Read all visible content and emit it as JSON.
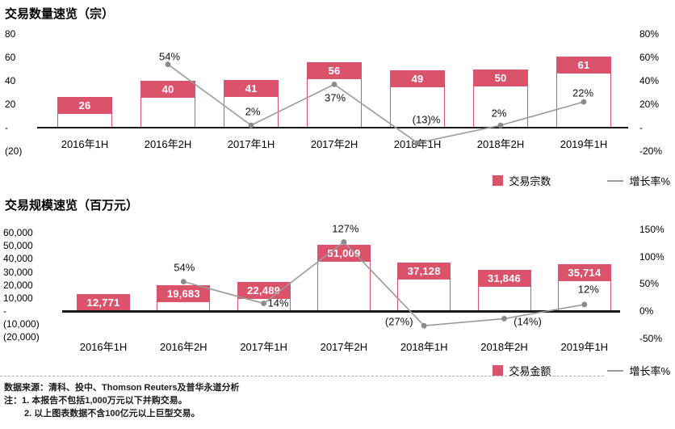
{
  "chart_data": [
    {
      "type": "bar+line",
      "title": "交易数量速览（宗）",
      "categories": [
        "2016年1H",
        "2016年2H",
        "2017年1H",
        "2017年2H",
        "2018年1H",
        "2018年2H",
        "2019年1H"
      ],
      "bar_series": {
        "name": "交易宗数",
        "values": [
          26,
          40,
          41,
          56,
          49,
          50,
          61
        ],
        "labels": [
          "26",
          "40",
          "41",
          "56",
          "49",
          "50",
          "61"
        ]
      },
      "line_series": {
        "name": "增长率%",
        "values": [
          null,
          54,
          2,
          37,
          -13,
          2,
          22
        ],
        "labels": [
          null,
          "54%",
          "2%",
          "37%",
          "(13)%",
          "2%",
          "22%"
        ]
      },
      "left_axis": {
        "max": 80,
        "min": -20,
        "ticks": [
          "80",
          "60",
          "40",
          "20",
          "-",
          "(20)"
        ]
      },
      "right_axis": {
        "max": 80,
        "min": -20,
        "ticks": [
          "80%",
          "60%",
          "40%",
          "20%",
          "-",
          "-20%"
        ]
      },
      "legend": [
        {
          "swatch": "square",
          "label": "交易宗数"
        },
        {
          "swatch": "line",
          "label": "增长率%"
        }
      ],
      "grid": "off",
      "legend_position": "bottom-right"
    },
    {
      "type": "bar+line",
      "title": "交易规模速览（百万元）",
      "categories": [
        "2016年1H",
        "2016年2H",
        "2017年1H",
        "2017年2H",
        "2018年1H",
        "2018年2H",
        "2019年1H"
      ],
      "bar_series": {
        "name": "交易金额",
        "values": [
          12771,
          19683,
          22489,
          51009,
          37128,
          31846,
          35714
        ],
        "labels": [
          "12,771",
          "19,683",
          "22,489",
          "51,009",
          "37,128",
          "31,846",
          "35,714"
        ]
      },
      "line_series": {
        "name": "增长率%",
        "values": [
          null,
          54,
          14,
          127,
          -27,
          -14,
          12
        ],
        "labels": [
          null,
          "54%",
          "14%",
          "127%",
          "(27%)",
          "(14%)",
          "12%"
        ]
      },
      "left_axis": {
        "max": 60000,
        "min": -20000,
        "ticks": [
          "60,000",
          "50,000",
          "40,000",
          "30,000",
          "20,000",
          "10,000",
          "-",
          "(10,000)",
          "(20,000)"
        ]
      },
      "right_axis": {
        "max": 150,
        "min": -50,
        "ticks": [
          "150%",
          "100%",
          "50%",
          "0%",
          "-50%"
        ]
      },
      "legend": [
        {
          "swatch": "square",
          "label": "交易金额"
        },
        {
          "swatch": "line",
          "label": "增长率%"
        }
      ],
      "grid": "off",
      "legend_position": "bottom-right"
    }
  ],
  "footer": {
    "source": "数据来源：清科、投中、Thomson Reuters及普华永道分析",
    "notes": [
      "注：1. 本报告不包括1,000万元以下并购交易。",
      "2. 以上图表数据不含100亿元以上巨型交易。"
    ]
  },
  "colors": {
    "bar": "#db536a",
    "line": "#9a9a9a",
    "marker": "#8a8a8a",
    "axis": "#1a1a1a"
  }
}
